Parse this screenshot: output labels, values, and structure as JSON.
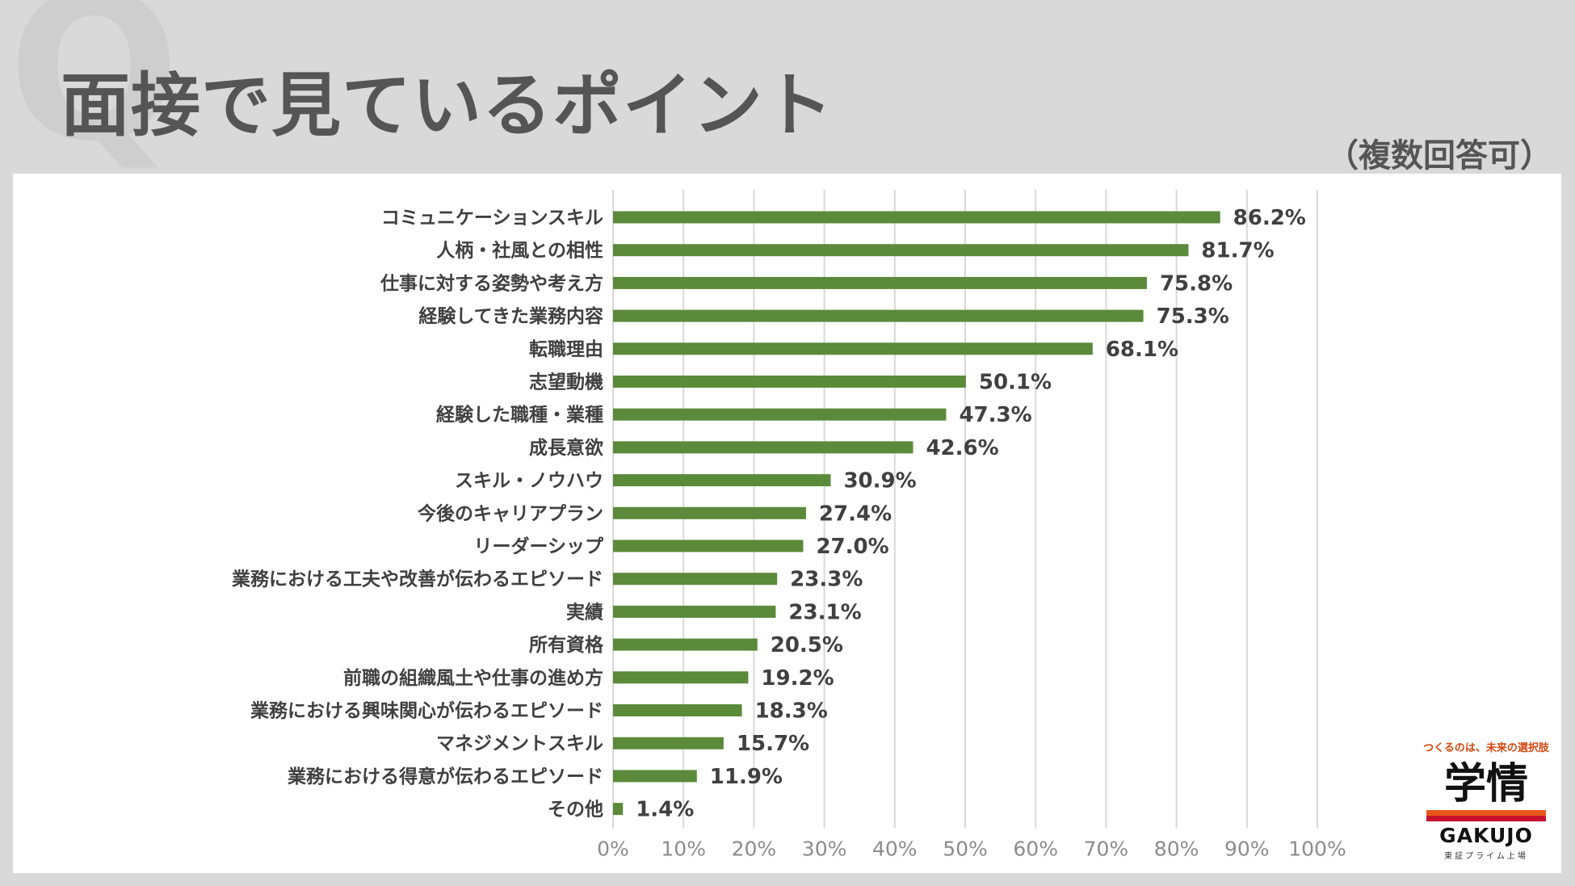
{
  "header": {
    "q_mark": "Q",
    "title": "面接で見ているポイント",
    "subtitle": "（複数回答可）"
  },
  "logo": {
    "tagline": "つくるのは、未来の選択肢",
    "kanji": "学情",
    "name": "GAKUJO",
    "sub": "東証プライム上場"
  },
  "colors": {
    "bar": "#5b8a3a",
    "grid": "#d9d9d9",
    "text": "#404040"
  },
  "chart_data": {
    "type": "bar",
    "orientation": "horizontal",
    "title": "面接で見ているポイント",
    "xlabel": "",
    "ylabel": "",
    "xlim": [
      0,
      100
    ],
    "value_suffix": "%",
    "ticks": [
      0,
      10,
      20,
      30,
      40,
      50,
      60,
      70,
      80,
      90,
      100
    ],
    "tick_labels": [
      "0%",
      "10%",
      "20%",
      "30%",
      "40%",
      "50%",
      "60%",
      "70%",
      "80%",
      "90%",
      "100%"
    ],
    "categories": [
      "コミュニケーションスキル",
      "人柄・社風との相性",
      "仕事に対する姿勢や考え方",
      "経験してきた業務内容",
      "転職理由",
      "志望動機",
      "経験した職種・業種",
      "成長意欲",
      "スキル・ノウハウ",
      "今後のキャリアプラン",
      "リーダーシップ",
      "業務における工夫や改善が伝わるエピソード",
      "実績",
      "所有資格",
      "前職の組織風土や仕事の進め方",
      "業務における興味関心が伝わるエピソード",
      "マネジメントスキル",
      "業務における得意が伝わるエピソード",
      "その他"
    ],
    "values": [
      86.2,
      81.7,
      75.8,
      75.3,
      68.1,
      50.1,
      47.3,
      42.6,
      30.9,
      27.4,
      27.0,
      23.3,
      23.1,
      20.5,
      19.2,
      18.3,
      15.7,
      11.9,
      1.4
    ],
    "value_labels": [
      "86.2%",
      "81.7%",
      "75.8%",
      "75.3%",
      "68.1%",
      "50.1%",
      "47.3%",
      "42.6%",
      "30.9%",
      "27.4%",
      "27.0%",
      "23.3%",
      "23.1%",
      "20.5%",
      "19.2%",
      "18.3%",
      "15.7%",
      "11.9%",
      "1.4%"
    ],
    "grid": true,
    "legend": "none"
  }
}
